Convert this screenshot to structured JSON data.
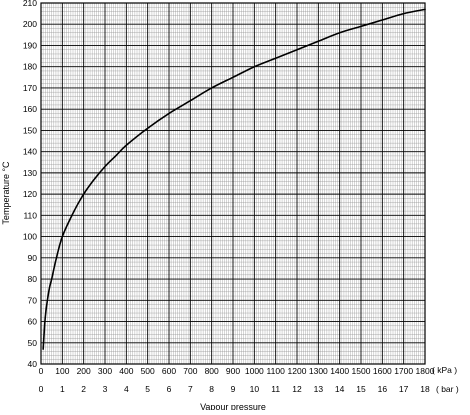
{
  "chart_data": {
    "type": "line",
    "title": "",
    "xlabel": "Vapour pressure",
    "ylabel": "Temperature °C",
    "x_unit_primary": "( kPa )",
    "x_unit_secondary": "( bar )",
    "xlim": [
      0,
      1800
    ],
    "ylim": [
      40,
      210
    ],
    "grid": true,
    "x_ticks_kpa": [
      "0",
      "100",
      "200",
      "300",
      "400",
      "500",
      "600",
      "700",
      "800",
      "900",
      "1000",
      "1100",
      "1200",
      "1300",
      "1400",
      "1500",
      "1600",
      "1700",
      "1800"
    ],
    "x_ticks_bar": [
      "0",
      "1",
      "2",
      "3",
      "4",
      "5",
      "6",
      "7",
      "8",
      "9",
      "10",
      "11",
      "12",
      "13",
      "14",
      "15",
      "16",
      "17",
      "18"
    ],
    "y_ticks": [
      "40",
      "50",
      "60",
      "70",
      "80",
      "90",
      "100",
      "110",
      "120",
      "130",
      "140",
      "150",
      "160",
      "170",
      "180",
      "190",
      "200",
      "210"
    ],
    "series": [
      {
        "x": [
          10,
          20,
          30,
          40,
          50,
          70,
          100,
          150,
          200,
          250,
          300,
          350,
          400,
          500,
          600,
          700,
          800,
          900,
          1000,
          1100,
          1200,
          1300,
          1400,
          1500,
          1600,
          1700,
          1800
        ],
        "values": [
          47,
          62,
          70,
          76,
          80,
          89,
          100,
          111,
          120,
          127,
          133,
          138,
          143,
          151,
          158,
          164,
          170,
          175,
          180,
          184,
          188,
          192,
          196,
          199,
          202,
          205,
          207
        ]
      }
    ],
    "colors": {
      "line": "#000000",
      "grid_major": "#000000",
      "grid_minor": "#8c8c8c"
    }
  }
}
